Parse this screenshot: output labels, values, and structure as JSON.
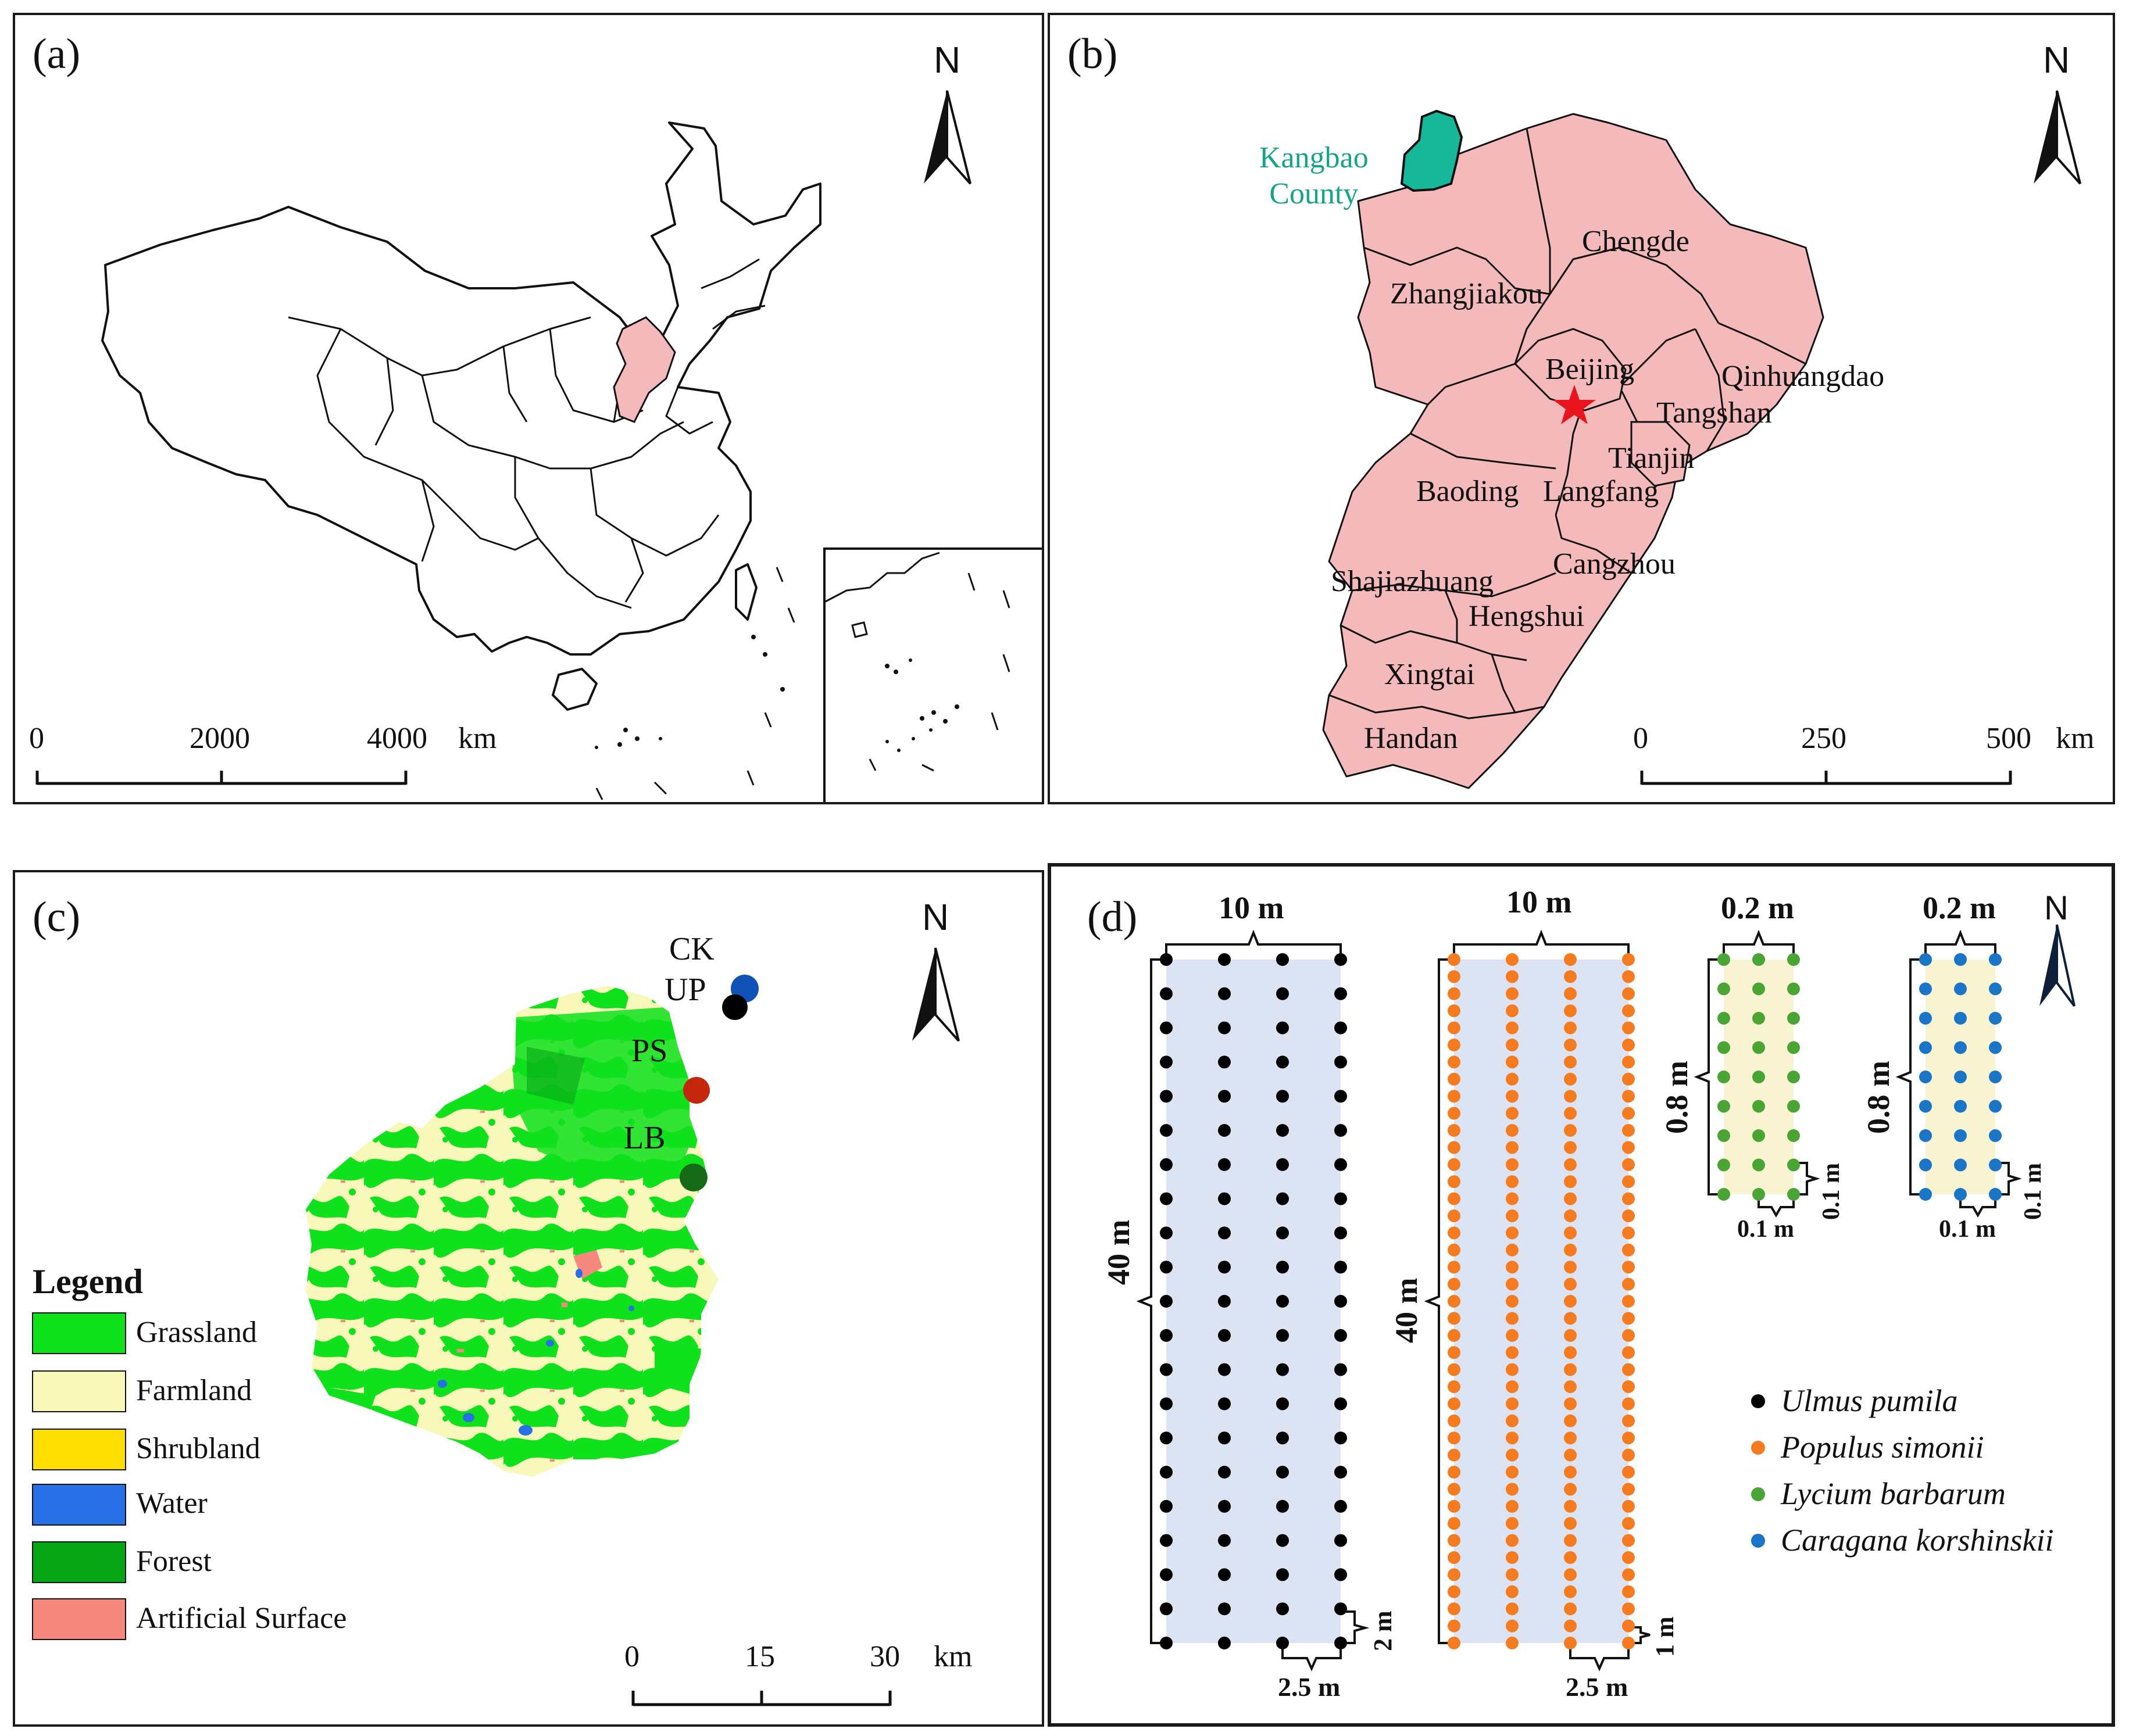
{
  "panel_a": {
    "letter": "(a)",
    "north": "N",
    "scale": {
      "ticks": [
        "0",
        "2000",
        "4000"
      ],
      "unit": "km"
    }
  },
  "panel_b": {
    "letter": "(b)",
    "north": "N",
    "highlight_label": "Kangbao County",
    "highlight_line1": "Kangbao",
    "highlight_line2": "County",
    "cities": [
      "Chengde",
      "Zhangjiakou",
      "Beijing",
      "Qinhuangdao",
      "Tangshan",
      "Tianjin",
      "Baoding",
      "Langfang",
      "Cangzhou",
      "Shajiazhuang",
      "Hengshui",
      "Xingtai",
      "Handan"
    ],
    "scale": {
      "ticks": [
        "0",
        "250",
        "500"
      ],
      "unit": "km"
    },
    "colors": {
      "province_fill": "#f4b9ba",
      "highlight_fill": "#17b79a",
      "highlight_text": "#17a388",
      "capital_star": "#e8141e"
    }
  },
  "panel_c": {
    "letter": "(c)",
    "north": "N",
    "sites": [
      {
        "label": "CK",
        "color": "#1051b5"
      },
      {
        "label": "UP",
        "color": "#000000"
      },
      {
        "label": "PS",
        "color": "#c4270c"
      },
      {
        "label": "LB",
        "color": "#176b18"
      }
    ],
    "legend": {
      "title": "Legend",
      "items": [
        {
          "label": "Grassland",
          "color": "#0fe11c"
        },
        {
          "label": "Farmland",
          "color": "#f7f8b9"
        },
        {
          "label": "Shrubland",
          "color": "#fedd02"
        },
        {
          "label": "Water",
          "color": "#2770e6"
        },
        {
          "label": "Forest",
          "color": "#06a617"
        },
        {
          "label": "Artificial Surface",
          "color": "#f68880"
        }
      ]
    },
    "scale": {
      "ticks": [
        "0",
        "15",
        "30"
      ],
      "unit": "km"
    }
  },
  "panel_d": {
    "letter": "(d)",
    "north": "N",
    "plots": [
      {
        "width_label": "10 m",
        "height_label": "40 m",
        "row_spacing": "2 m",
        "col_spacing": "2.5 m"
      },
      {
        "width_label": "10 m",
        "height_label": "40 m",
        "row_spacing": "1 m",
        "col_spacing": "2.5 m"
      },
      {
        "width_label": "0.2 m",
        "height_label": "0.8 m",
        "row_spacing": "0.1 m",
        "col_spacing": "0.1 m"
      },
      {
        "width_label": "0.2 m",
        "height_label": "0.8 m",
        "row_spacing": "0.1 m",
        "col_spacing": "0.1 m"
      }
    ],
    "species": [
      {
        "name": "Ulmus pumila",
        "color": "#000000"
      },
      {
        "name": "Populus simonii",
        "color": "#f47b20"
      },
      {
        "name": "Lycium barbarum",
        "color": "#4aa534"
      },
      {
        "name": "Caragana korshinskii",
        "color": "#1b75c7"
      }
    ]
  }
}
